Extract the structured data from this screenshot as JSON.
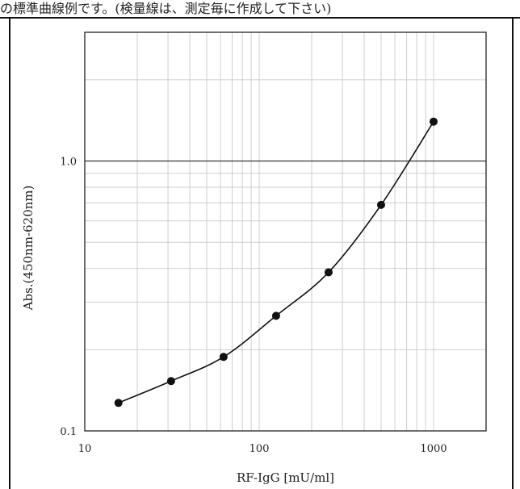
{
  "header_fragment": "の標準曲線例です。(検量線は、測定毎に作成して下さい)",
  "chart_data": {
    "type": "line",
    "title": "",
    "xlabel": "RF-IgG [mU/ml]",
    "ylabel": "Abs.(450nm-620nm)",
    "x_scale": "log",
    "y_scale": "log",
    "xlim": [
      10,
      2000
    ],
    "ylim": [
      0.1,
      3.0
    ],
    "x_ticks": [
      {
        "value": 10,
        "label": "10"
      },
      {
        "value": 100,
        "label": "100"
      },
      {
        "value": 1000,
        "label": "1000"
      }
    ],
    "y_ticks": [
      {
        "value": 0.1,
        "label": "0.1"
      },
      {
        "value": 1.0,
        "label": "1.0"
      }
    ],
    "x_grid_values": [
      20,
      30,
      40,
      50,
      60,
      70,
      80,
      90,
      100,
      200,
      300,
      400,
      500,
      600,
      700,
      800,
      900,
      1000
    ],
    "y_grid_values": [
      0.2,
      0.3,
      0.4,
      0.5,
      0.6,
      0.7,
      0.8,
      0.9,
      1.0,
      2.0
    ],
    "major_y_line": 1.0,
    "grid": true,
    "legend": "none",
    "marker": "filled-circle",
    "series": [
      {
        "x": [
          15.6,
          31.25,
          62.5,
          125,
          250,
          500,
          1000
        ],
        "y": [
          0.127,
          0.153,
          0.188,
          0.267,
          0.387,
          0.688,
          1.4
        ]
      }
    ],
    "colors": {
      "line": "#111111",
      "marker": "#111111",
      "grid": "#cfcfcf",
      "frame": "#222222"
    }
  }
}
